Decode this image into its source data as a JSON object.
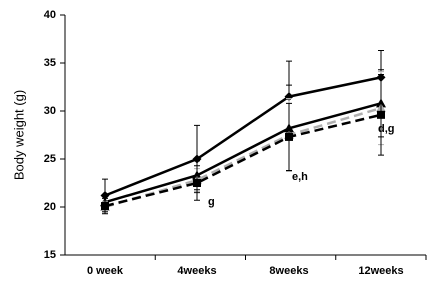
{
  "chart_data": {
    "type": "line",
    "y_label": "Body weight (g)",
    "categories": [
      "0 week",
      "4weeks",
      "8weeks",
      "12weeks"
    ],
    "series": [
      {
        "color": "#000000",
        "dashed": false,
        "marker": "diamond",
        "values": [
          21.2,
          25.0,
          31.5,
          33.5
        ],
        "errors": [
          1.7,
          3.5,
          3.7,
          2.8
        ]
      },
      {
        "color": "#000000",
        "dashed": false,
        "marker": "triangle",
        "values": [
          20.5,
          23.3,
          28.2,
          30.8
        ],
        "errors": [
          0.8,
          1.5,
          4.5,
          3.5
        ]
      },
      {
        "color": "#b0b0b0",
        "dashed": true,
        "marker": "triangle",
        "values": [
          20.0,
          22.8,
          27.5,
          30.3
        ],
        "errors": [
          0.6,
          1.2,
          3.8,
          3.8
        ]
      },
      {
        "color": "#000000",
        "dashed": true,
        "marker": "square",
        "values": [
          20.1,
          22.5,
          27.3,
          29.6
        ],
        "errors": [
          0.8,
          1.8,
          3.5,
          4.2
        ]
      }
    ],
    "annotations": [
      "g",
      "e,h",
      "d,g"
    ],
    "ylim": [
      15,
      40
    ],
    "yticks": [
      15,
      20,
      25,
      30,
      35,
      40
    ],
    "grid": false
  }
}
